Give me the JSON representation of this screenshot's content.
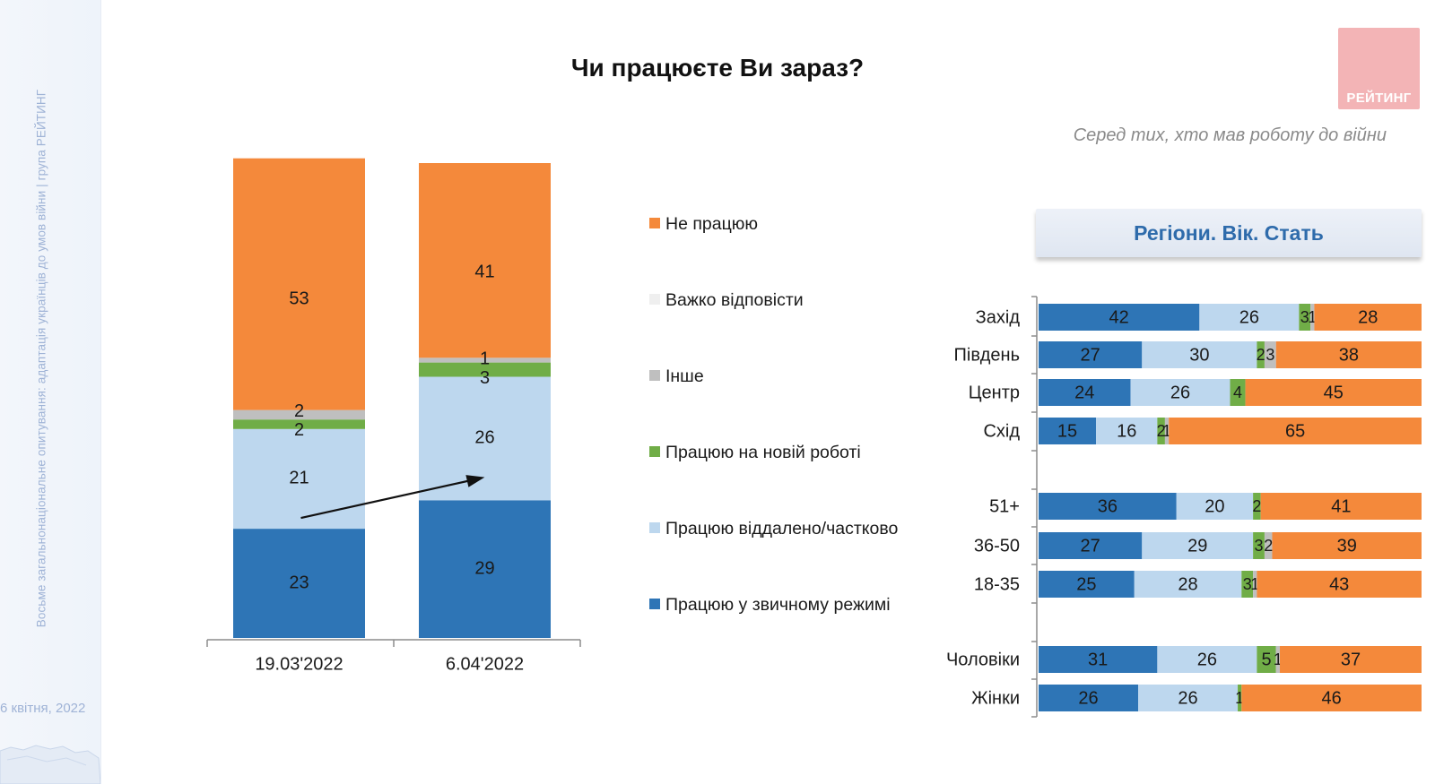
{
  "title": "Чи працюєте Ви зараз?",
  "subtitle": "Серед тих, хто мав роботу до війни",
  "logo_text": "РЕЙТИНГ",
  "region_header": "Регіони. Вік. Стать",
  "sidebar": {
    "vertical_text": "Восьме загальнонаціональне опитування: адаптація українців до умов війни | група РЕЙТИНГ",
    "date": "6 квітня, 2022"
  },
  "colors": {
    "normal": "#2e75b6",
    "remote": "#bdd7ee",
    "new_job": "#70ad47",
    "other": "#bfbfbf",
    "hard": "#f2f2f2",
    "not_working": "#f4893b"
  },
  "legend": [
    {
      "key": "not_working",
      "label": "Не працюю"
    },
    {
      "key": "hard",
      "label": "Важко відповісти"
    },
    {
      "key": "other",
      "label": "Інше"
    },
    {
      "key": "new_job",
      "label": "Працюю на новій роботі"
    },
    {
      "key": "remote",
      "label": "Працюю віддалено/частково"
    },
    {
      "key": "normal",
      "label": "Працюю у звичному режимі"
    }
  ],
  "chart_data": [
    {
      "type": "bar",
      "stacked": true,
      "orientation": "vertical",
      "categories": [
        "19.03'2022",
        "6.04'2022"
      ],
      "series": [
        {
          "key": "normal",
          "name": "Працюю у звичному режимі",
          "values": [
            23,
            29
          ],
          "labels": [
            "23",
            "29"
          ]
        },
        {
          "key": "remote",
          "name": "Працюю віддалено/частково",
          "values": [
            21,
            26
          ],
          "labels": [
            "21",
            "26"
          ]
        },
        {
          "key": "new_job",
          "name": "Працюю на новій роботі",
          "values": [
            2,
            3
          ],
          "labels": [
            "2",
            "3"
          ]
        },
        {
          "key": "other",
          "name": "Інше",
          "values": [
            2,
            1
          ],
          "labels": [
            "2",
            "1"
          ]
        },
        {
          "key": "hard",
          "name": "Важко відповісти",
          "values": [
            0,
            0
          ],
          "labels": [
            "",
            ""
          ]
        },
        {
          "key": "not_working",
          "name": "Не працюю",
          "values": [
            53,
            41
          ],
          "labels": [
            "53",
            "41"
          ]
        }
      ],
      "ylim": [
        0,
        100
      ],
      "annotation": "arrow from first-bar 'normal' segment to second-bar 'remote' segment"
    },
    {
      "type": "bar",
      "stacked": true,
      "orientation": "horizontal",
      "groups": [
        {
          "name": "Регіони",
          "rows": [
            {
              "label": "Захід",
              "values": [
                42,
                26,
                3,
                1,
                0,
                28
              ]
            },
            {
              "label": "Південь",
              "values": [
                27,
                30,
                2,
                3,
                0,
                38
              ]
            },
            {
              "label": "Центр",
              "values": [
                24,
                26,
                4,
                0,
                0,
                45
              ]
            },
            {
              "label": "Схід",
              "values": [
                15,
                16,
                2,
                1,
                0,
                65
              ]
            }
          ]
        },
        {
          "name": "Вік",
          "rows": [
            {
              "label": "51+",
              "values": [
                36,
                20,
                2,
                0,
                0,
                41
              ]
            },
            {
              "label": "36-50",
              "values": [
                27,
                29,
                3,
                2,
                0,
                39
              ]
            },
            {
              "label": "18-35",
              "values": [
                25,
                28,
                3,
                1,
                0,
                43
              ]
            }
          ]
        },
        {
          "name": "Стать",
          "rows": [
            {
              "label": "Чоловіки",
              "values": [
                31,
                26,
                5,
                1,
                0,
                37
              ]
            },
            {
              "label": "Жінки",
              "values": [
                26,
                26,
                1,
                0,
                0,
                46
              ]
            }
          ]
        }
      ],
      "series_keys": [
        "normal",
        "remote",
        "new_job",
        "other",
        "hard",
        "not_working"
      ],
      "xlim": [
        0,
        100
      ]
    }
  ]
}
